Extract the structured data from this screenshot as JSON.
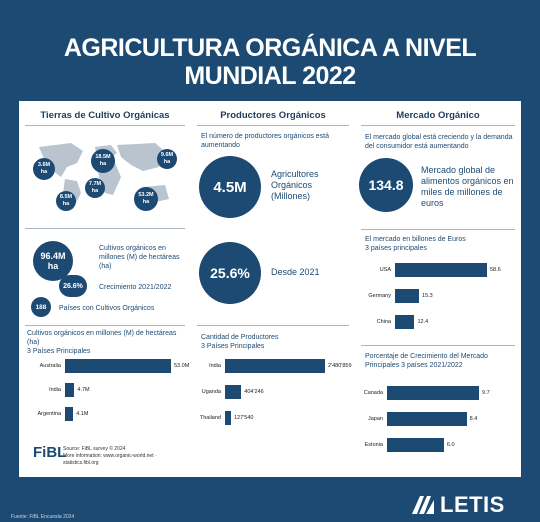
{
  "title_line1": "AGRICULTURA ORGÁNICA A NIVEL",
  "title_line2": "MUNDIAL 2022",
  "col1": {
    "heading": "Tierras de Cultivo Orgánicas",
    "map_bubbles": [
      {
        "value": "3.6M",
        "unit": "ha"
      },
      {
        "value": "18.5M",
        "unit": "ha"
      },
      {
        "value": "9.6M",
        "unit": "ha"
      },
      {
        "value": "7.7M",
        "unit": "ha"
      },
      {
        "value": "8.5M",
        "unit": "ha"
      },
      {
        "value": "53.2M",
        "unit": "ha"
      }
    ],
    "big_value": "96.4M",
    "big_unit": "ha",
    "big_desc": "Cultivos orgánicos en millones (M) de hectáreas (ha)",
    "growth_value": "26.6%",
    "growth_desc": "Crecimiento 2021/2022",
    "countries_value": "188",
    "countries_desc": "Países con Cultivos Orgánicos",
    "chart_title": "Cultivos orgánicos en millones (M) de hectáreas (ha)",
    "chart_subtitle": "3 Países Principales",
    "fibl_logo": "FiBL",
    "fibl_source": "Source: FiBL survey © 2024",
    "fibl_more": "More information: www.organic-world.net · statistics.fibl.org"
  },
  "col2": {
    "heading": "Productores Orgánicos",
    "intro": "El número de productores orgánicos está aumentando",
    "big_value": "4.5M",
    "big_desc": "Agricultores Orgánicos (Millones)",
    "growth_value": "25.6%",
    "growth_desc": "Desde 2021",
    "chart_title": "Cantidad de Productores",
    "chart_subtitle": "3 Países Principales"
  },
  "col3": {
    "heading": "Mercado Orgánico",
    "intro": "El mercado global está creciendo y la demanda del consumidor está aumentando",
    "big_value": "134.8",
    "big_desc": "Mercado global de alimentos orgánicos en miles de millones de euros",
    "chart1_title": "El mercado en billones de Euros",
    "chart1_subtitle": "3 países principales",
    "chart2_title": "Porcentaje de Crecimiento del Mercado Principales 3 países 2021/2022"
  },
  "footer": {
    "source": "Fuente: FiBL Encuesta 2024",
    "logo": "LETIS"
  },
  "chart_data": [
    {
      "type": "bar",
      "title": "Cultivos orgánicos en millones (M) de hectáreas (ha)",
      "categories": [
        "Australia",
        "India",
        "Argentina"
      ],
      "values": [
        53.0,
        4.7,
        4.1
      ],
      "labels": [
        "53.0M",
        "4.7M",
        "4.1M"
      ],
      "orientation": "horizontal"
    },
    {
      "type": "bar",
      "title": "Cantidad de Productores",
      "categories": [
        "India",
        "Uganda",
        "Thailand"
      ],
      "values": [
        2480859,
        404246,
        127540
      ],
      "labels": [
        "2'480'859",
        "404'246",
        "127'540"
      ],
      "orientation": "horizontal"
    },
    {
      "type": "bar",
      "title": "El mercado en billones de Euros",
      "categories": [
        "USA",
        "Germany",
        "China"
      ],
      "values": [
        58.6,
        15.3,
        12.4
      ],
      "labels": [
        "58.6",
        "15.3",
        "12.4"
      ],
      "orientation": "horizontal"
    },
    {
      "type": "bar",
      "title": "Porcentaje de Crecimiento del Mercado",
      "categories": [
        "Canada",
        "Japan",
        "Estonia"
      ],
      "values": [
        9.7,
        8.4,
        6.0
      ],
      "labels": [
        "9.7",
        "8.4",
        "6.0"
      ],
      "orientation": "horizontal"
    }
  ]
}
